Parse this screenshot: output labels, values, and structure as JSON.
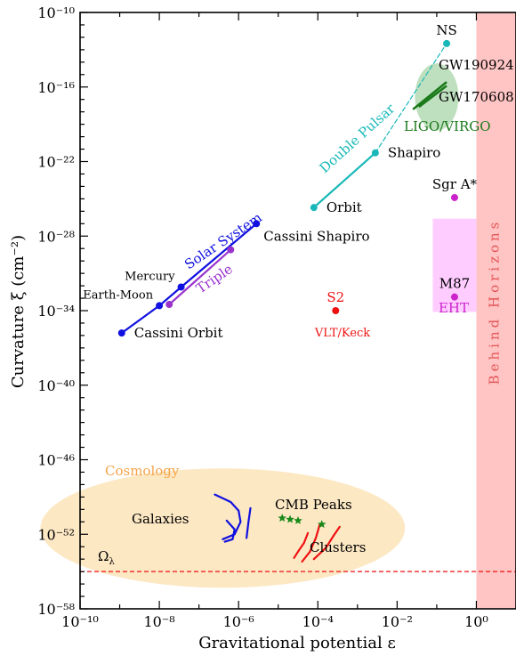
{
  "chart_data": {
    "type": "scatter",
    "xlabel": "Gravitational potential ε",
    "ylabel": "Curvature ξ (cm⁻²)",
    "x_scale": "log",
    "y_scale": "log",
    "xlim_exp": [
      -10,
      1
    ],
    "ylim_exp": [
      -58,
      -10
    ],
    "x_major_exp": [
      -10,
      -8,
      -6,
      -4,
      -2,
      0
    ],
    "y_major_exp": [
      -10,
      -16,
      -22,
      -28,
      -34,
      -40,
      -46,
      -52,
      -58
    ],
    "x_tick_labels": [
      "10⁻¹⁰",
      "10⁻⁸",
      "10⁻⁶",
      "10⁻⁴",
      "10⁻²",
      "10⁰"
    ],
    "y_tick_labels": [
      "10⁻¹⁰",
      "10⁻¹⁶",
      "10⁻²²",
      "10⁻²⁸",
      "10⁻³⁴",
      "10⁻⁴⁰",
      "10⁻⁴⁶",
      "10⁻⁵²",
      "10⁻⁵⁸"
    ],
    "grid": false,
    "colors": {
      "solar": "#1010e0",
      "triple": "#9933cc",
      "pulsar": "#19b8b8",
      "ligo": "#1a7a1a",
      "ligo_region": "#bfe0bf",
      "eht": "#cc22cc",
      "eht_region": "#ffccff",
      "s2": "#ee1111",
      "horizon": "#ffc4c4",
      "horizon_text": "#e45555",
      "cosmo": "#fde8c4",
      "cosmo_text": "#f5a347",
      "omega": "#ee1111",
      "galaxies": "#1010e0",
      "clusters": "#ee1111",
      "cmb": "#1a8a1a"
    },
    "series": [
      {
        "name": "Solar System",
        "color_key": "solar",
        "points": [
          {
            "x_exp": -8.95,
            "y_exp": -35.8,
            "label": "Cassini Orbit",
            "label_pos": "right"
          },
          {
            "x_exp": -8.0,
            "y_exp": -33.6,
            "label": "Earth-Moon",
            "label_pos": "left-above"
          },
          {
            "x_exp": -7.45,
            "y_exp": -32.1,
            "label": "Mercury",
            "label_pos": "left-above"
          },
          {
            "x_exp": -5.55,
            "y_exp": -27.0,
            "label": "Cassini Shapiro",
            "label_pos": "right-below"
          }
        ]
      },
      {
        "name": "Triple",
        "color_key": "triple",
        "points": [
          {
            "x_exp": -7.75,
            "y_exp": -33.5
          },
          {
            "x_exp": -6.2,
            "y_exp": -29.1
          }
        ]
      },
      {
        "name": "Double Pulsar",
        "color_key": "pulsar",
        "points": [
          {
            "x_exp": -4.1,
            "y_exp": -25.7,
            "label": "Orbit",
            "label_pos": "right"
          },
          {
            "x_exp": -2.55,
            "y_exp": -21.3,
            "label": "Shapiro",
            "label_pos": "right"
          },
          {
            "x_exp": -0.75,
            "y_exp": -12.5,
            "label": "NS",
            "label_pos": "above"
          }
        ]
      },
      {
        "name": "EHT",
        "color_key": "eht",
        "points": [
          {
            "x_exp": -0.55,
            "y_exp": -24.9,
            "label": "Sgr A*",
            "label_pos": "above"
          },
          {
            "x_exp": -0.55,
            "y_exp": -32.9,
            "label": "M87",
            "label_pos": "above"
          }
        ]
      },
      {
        "name": "S2",
        "color_key": "s2",
        "points": [
          {
            "x_exp": -3.55,
            "y_exp": -34.0,
            "label": "S2",
            "label_pos": "above"
          }
        ]
      }
    ],
    "ligo": {
      "label": "LIGO/VIRGO",
      "events": [
        {
          "name": "GW190924",
          "x_exp": [
            -1.6,
            -0.75
          ],
          "y_exp": [
            -17.8,
            -15.6
          ]
        },
        {
          "name": "GW170608",
          "x_exp": [
            -1.45,
            -0.75
          ],
          "y_exp": [
            -17.6,
            -15.9
          ]
        }
      ],
      "region_center": [
        -1.0,
        -16.8
      ],
      "region_r": [
        0.55,
        2.7
      ]
    },
    "eht_region": {
      "x_exp": [
        -1.1,
        0
      ],
      "y_exp": [
        -26.6,
        -34.1
      ]
    },
    "behind_horizons": {
      "label": "Behind Horizons",
      "x_exp_min": 0
    },
    "cosmology": {
      "label": "Cosmology",
      "region_center": [
        -6.4,
        -51.5
      ],
      "region_r": [
        4.6,
        4.8
      ],
      "galaxies_label": "Galaxies",
      "clusters_label": "Clusters",
      "cmb_label": "CMB Peaks",
      "galaxies": [
        [
          [
            -6.6,
            -48.8
          ],
          [
            -6.2,
            -49.4
          ],
          [
            -6.0,
            -50.1
          ],
          [
            -5.95,
            -51.0
          ],
          [
            -6.1,
            -52.0
          ],
          [
            -6.4,
            -52.4
          ]
        ],
        [
          [
            -6.3,
            -50.9
          ],
          [
            -6.1,
            -51.6
          ],
          [
            -6.15,
            -52.4
          ],
          [
            -6.35,
            -52.6
          ]
        ],
        [
          [
            -5.7,
            -49.9
          ],
          [
            -5.75,
            -51.0
          ],
          [
            -5.8,
            -52.3
          ]
        ]
      ],
      "cmb": [
        [
          -4.9,
          -50.7
        ],
        [
          -4.7,
          -50.8
        ],
        [
          -4.5,
          -50.9
        ],
        [
          -3.9,
          -51.2
        ]
      ],
      "clusters": [
        [
          [
            -4.6,
            -53.9
          ],
          [
            -4.5,
            -53.4
          ],
          [
            -4.35,
            -52.7
          ],
          [
            -4.25,
            -51.9
          ]
        ],
        [
          [
            -4.4,
            -54.2
          ],
          [
            -4.2,
            -53.4
          ],
          [
            -4.05,
            -52.3
          ],
          [
            -3.95,
            -51.2
          ]
        ],
        [
          [
            -4.1,
            -54.0
          ],
          [
            -3.8,
            -53.1
          ],
          [
            -3.6,
            -52.1
          ],
          [
            -3.45,
            -51.4
          ]
        ]
      ]
    },
    "omega_lambda": {
      "label": "Ω_λ",
      "y_exp": -55.0
    }
  }
}
